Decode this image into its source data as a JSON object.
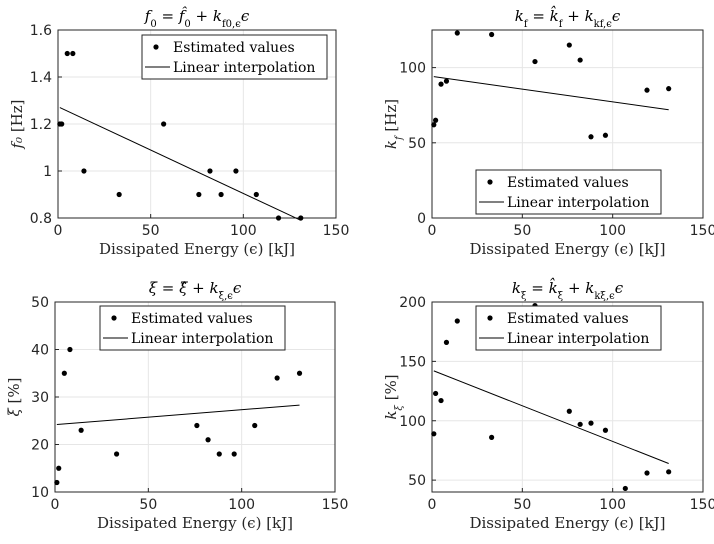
{
  "colors": {
    "axis": "#262626",
    "grid": "#e6e6e6",
    "marker": "#000000",
    "line": "#000000"
  },
  "chart_data": [
    {
      "type": "scatter",
      "title": "f₀ = f̂₀ + k_{f0,ϵ} ϵ",
      "title_parts": [
        {
          "t": "f"
        },
        {
          "t": "0",
          "sub": true
        },
        {
          "t": " = "
        },
        {
          "t": "f̂"
        },
        {
          "t": "0",
          "sub": true
        },
        {
          "t": " + "
        },
        {
          "t": "k"
        },
        {
          "t": "f0,ϵ",
          "sub": true
        },
        {
          "t": "ϵ"
        }
      ],
      "xlabel": "Dissipated Energy (ϵ) [kJ]",
      "ylabel": "f₀ [Hz]",
      "xlim": [
        0,
        150
      ],
      "ylim": [
        0.8,
        1.6
      ],
      "xticks": [
        0,
        50,
        100,
        150
      ],
      "yticks": [
        0.8,
        1,
        1.2,
        1.4,
        1.6
      ],
      "ytick_labels": [
        "0.8",
        "1",
        "1.2",
        "1.4",
        "1.6"
      ],
      "grid": true,
      "legend": {
        "placement": "top-right",
        "entries": [
          "Estimated values",
          "Linear interpolation"
        ]
      },
      "series": [
        {
          "name": "Estimated values",
          "kind": "points",
          "x": [
            1,
            2,
            5,
            8,
            14,
            33,
            57,
            76,
            82,
            88,
            96,
            107,
            119,
            131
          ],
          "y": [
            1.2,
            1.2,
            1.5,
            1.5,
            1.0,
            0.9,
            1.2,
            0.9,
            1.0,
            0.9,
            1.0,
            0.9,
            0.8,
            0.8
          ]
        },
        {
          "name": "Linear interpolation",
          "kind": "line",
          "x": [
            1,
            131
          ],
          "y": [
            1.27,
            0.79
          ]
        }
      ]
    },
    {
      "type": "scatter",
      "title": "k_f = k̂_f + k_{kf,ϵ} ϵ",
      "title_parts": [
        {
          "t": "k"
        },
        {
          "t": "f",
          "sub": true
        },
        {
          "t": " = "
        },
        {
          "t": "k̂"
        },
        {
          "t": "f",
          "sub": true
        },
        {
          "t": " + "
        },
        {
          "t": "k"
        },
        {
          "t": "kf,ϵ",
          "sub": true
        },
        {
          "t": "ϵ"
        }
      ],
      "xlabel": "Dissipated Energy (ϵ) [kJ]",
      "ylabel": "k_f [Hz]",
      "xlim": [
        0,
        150
      ],
      "ylim": [
        0,
        125
      ],
      "xticks": [
        0,
        50,
        100,
        150
      ],
      "yticks": [
        0,
        50,
        100
      ],
      "ytick_labels": [
        "0",
        "50",
        "100"
      ],
      "grid": true,
      "legend": {
        "placement": "bottom-right",
        "entries": [
          "Estimated values",
          "Linear interpolation"
        ]
      },
      "series": [
        {
          "name": "Estimated values",
          "kind": "points",
          "x": [
            1,
            2,
            5,
            8,
            14,
            33,
            57,
            76,
            82,
            88,
            96,
            119,
            131
          ],
          "y": [
            62,
            65,
            89,
            91,
            123,
            122,
            104,
            115,
            105,
            54,
            55,
            85,
            86
          ]
        },
        {
          "name": "Linear interpolation",
          "kind": "line",
          "x": [
            1,
            131
          ],
          "y": [
            94,
            72
          ]
        }
      ]
    },
    {
      "type": "scatter",
      "title": "ξ = ξ̂ + k_{ξ,ϵ} ϵ",
      "title_parts": [
        {
          "t": "ξ = ξ̂ + k"
        },
        {
          "t": "ξ,ϵ",
          "sub": true
        },
        {
          "t": "ϵ"
        }
      ],
      "xlabel": "Dissipated Energy (ϵ) [kJ]",
      "ylabel": "ξ [%]",
      "xlim": [
        0,
        150
      ],
      "ylim": [
        10,
        50
      ],
      "xticks": [
        0,
        50,
        100,
        150
      ],
      "yticks": [
        10,
        20,
        30,
        40,
        50
      ],
      "ytick_labels": [
        "10",
        "20",
        "30",
        "40",
        "50"
      ],
      "grid": true,
      "legend": {
        "placement": "top-center",
        "entries": [
          "Estimated values",
          "Linear interpolation"
        ]
      },
      "series": [
        {
          "name": "Estimated values",
          "kind": "points",
          "x": [
            1,
            2,
            5,
            8,
            14,
            33,
            76,
            82,
            88,
            96,
            107,
            119,
            131
          ],
          "y": [
            12,
            15,
            35,
            40,
            23,
            18,
            24,
            21,
            18,
            18,
            24,
            34,
            35
          ]
        },
        {
          "name": "Linear interpolation",
          "kind": "line",
          "x": [
            1,
            131
          ],
          "y": [
            24.2,
            28.3
          ]
        }
      ]
    },
    {
      "type": "scatter",
      "title": "k_ξ = k̂_ξ + k_{kξ,ϵ} ϵ",
      "title_parts": [
        {
          "t": "k"
        },
        {
          "t": "ξ",
          "sub": true
        },
        {
          "t": " = "
        },
        {
          "t": "k̂"
        },
        {
          "t": "ξ",
          "sub": true
        },
        {
          "t": " + "
        },
        {
          "t": "k"
        },
        {
          "t": "kξ,ϵ",
          "sub": true
        },
        {
          "t": "ϵ"
        }
      ],
      "xlabel": "Dissipated Energy (ϵ) [kJ]",
      "ylabel": "k_ξ [%]",
      "xlim": [
        0,
        150
      ],
      "ylim": [
        40,
        200
      ],
      "xticks": [
        0,
        50,
        100,
        150
      ],
      "yticks": [
        50,
        100,
        150,
        200
      ],
      "ytick_labels": [
        "50",
        "100",
        "150",
        "200"
      ],
      "grid": true,
      "legend": {
        "placement": "top-right",
        "entries": [
          "Estimated values",
          "Linear interpolation"
        ]
      },
      "series": [
        {
          "name": "Estimated values",
          "kind": "points",
          "x": [
            1,
            2,
            5,
            8,
            14,
            33,
            57,
            76,
            82,
            88,
            96,
            107,
            119,
            131
          ],
          "y": [
            89,
            123,
            117,
            166,
            184,
            86,
            197,
            108,
            97,
            98,
            92,
            43,
            56,
            57
          ]
        },
        {
          "name": "Linear interpolation",
          "kind": "line",
          "x": [
            1,
            131
          ],
          "y": [
            142,
            64
          ]
        }
      ]
    }
  ]
}
